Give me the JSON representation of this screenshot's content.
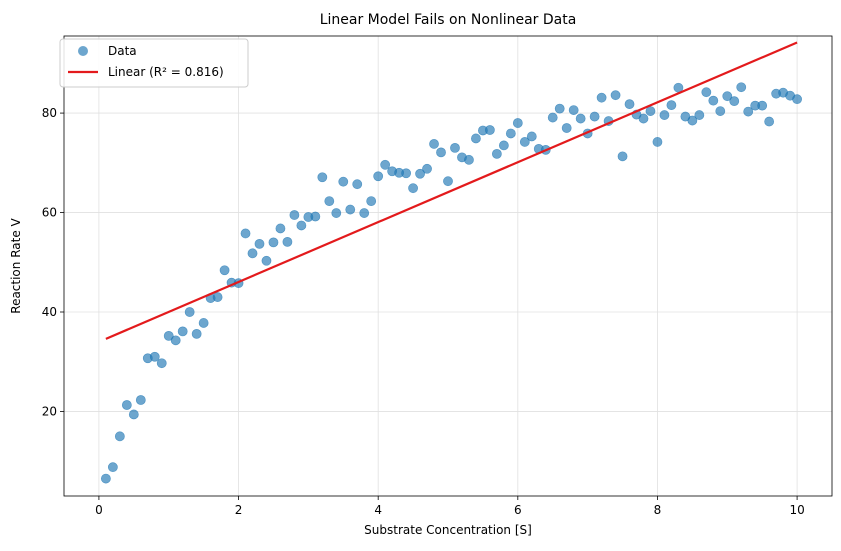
{
  "chart_data": {
    "type": "scatter",
    "title": "Linear Model Fails on Nonlinear Data",
    "xlabel": "Substrate Concentration [S]",
    "ylabel": "Reaction Rate V",
    "xlim": [
      -0.5,
      10.5
    ],
    "ylim": [
      3,
      95.5
    ],
    "xticks": [
      0,
      2,
      4,
      6,
      8,
      10
    ],
    "yticks": [
      20,
      40,
      60,
      80
    ],
    "grid": true,
    "legend_position": "top-left",
    "colors": {
      "data": "#1f77b4",
      "fit": "#e31a1c"
    },
    "series": [
      {
        "name": "Data",
        "kind": "scatter",
        "x": [
          0.1,
          0.2,
          0.3,
          0.4,
          0.5,
          0.6,
          0.7,
          0.8,
          0.9,
          1.0,
          1.1,
          1.2,
          1.3,
          1.4,
          1.5,
          1.6,
          1.7,
          1.8,
          1.9,
          2.0,
          2.1,
          2.2,
          2.3,
          2.4,
          2.5,
          2.6,
          2.7,
          2.8,
          2.9,
          3.0,
          3.1,
          3.2,
          3.3,
          3.4,
          3.5,
          3.6,
          3.7,
          3.8,
          3.9,
          4.0,
          4.1,
          4.2,
          4.3,
          4.4,
          4.5,
          4.6,
          4.7,
          4.8,
          4.9,
          5.0,
          5.1,
          5.2,
          5.3,
          5.4,
          5.5,
          5.6,
          5.7,
          5.8,
          5.9,
          6.0,
          6.1,
          6.2,
          6.3,
          6.4,
          6.5,
          6.6,
          6.7,
          6.8,
          6.9,
          7.0,
          7.1,
          7.2,
          7.3,
          7.4,
          7.5,
          7.6,
          7.7,
          7.8,
          7.9,
          8.0,
          8.1,
          8.2,
          8.3,
          8.4,
          8.5,
          8.6,
          8.7,
          8.8,
          8.9,
          9.0,
          9.1,
          9.2,
          9.3,
          9.4,
          9.5,
          9.6,
          9.7,
          9.8,
          9.9,
          10.0
        ],
        "y": [
          6.5,
          8.8,
          15.0,
          21.3,
          19.4,
          22.3,
          30.7,
          31.0,
          29.7,
          35.2,
          34.3,
          36.1,
          40.0,
          35.6,
          37.8,
          42.8,
          43.0,
          48.4,
          45.9,
          45.8,
          55.8,
          51.8,
          53.7,
          50.3,
          54.0,
          56.8,
          54.1,
          59.5,
          57.4,
          59.1,
          59.2,
          67.1,
          62.3,
          59.9,
          66.2,
          60.6,
          65.7,
          59.9,
          62.3,
          67.3,
          69.6,
          68.3,
          68.0,
          67.9,
          64.9,
          67.8,
          68.8,
          73.8,
          72.1,
          66.3,
          73.0,
          71.1,
          70.6,
          74.9,
          76.5,
          76.6,
          71.8,
          73.5,
          75.9,
          78.0,
          74.2,
          75.3,
          72.8,
          72.6,
          79.1,
          80.9,
          77.0,
          80.6,
          78.9,
          75.9,
          79.3,
          83.1,
          78.4,
          83.6,
          71.3,
          81.8,
          79.7,
          78.9,
          80.4,
          74.2,
          79.6,
          81.6,
          85.1,
          79.3,
          78.5,
          79.6,
          84.2,
          82.5,
          80.4,
          83.4,
          82.4,
          85.2,
          80.3,
          81.5,
          81.5,
          78.3,
          83.9,
          84.1,
          83.5,
          82.8
        ]
      },
      {
        "name": "Linear (R² = 0.816)",
        "kind": "line",
        "x": [
          0.1,
          10.0
        ],
        "y": [
          34.6,
          94.2
        ]
      }
    ]
  }
}
